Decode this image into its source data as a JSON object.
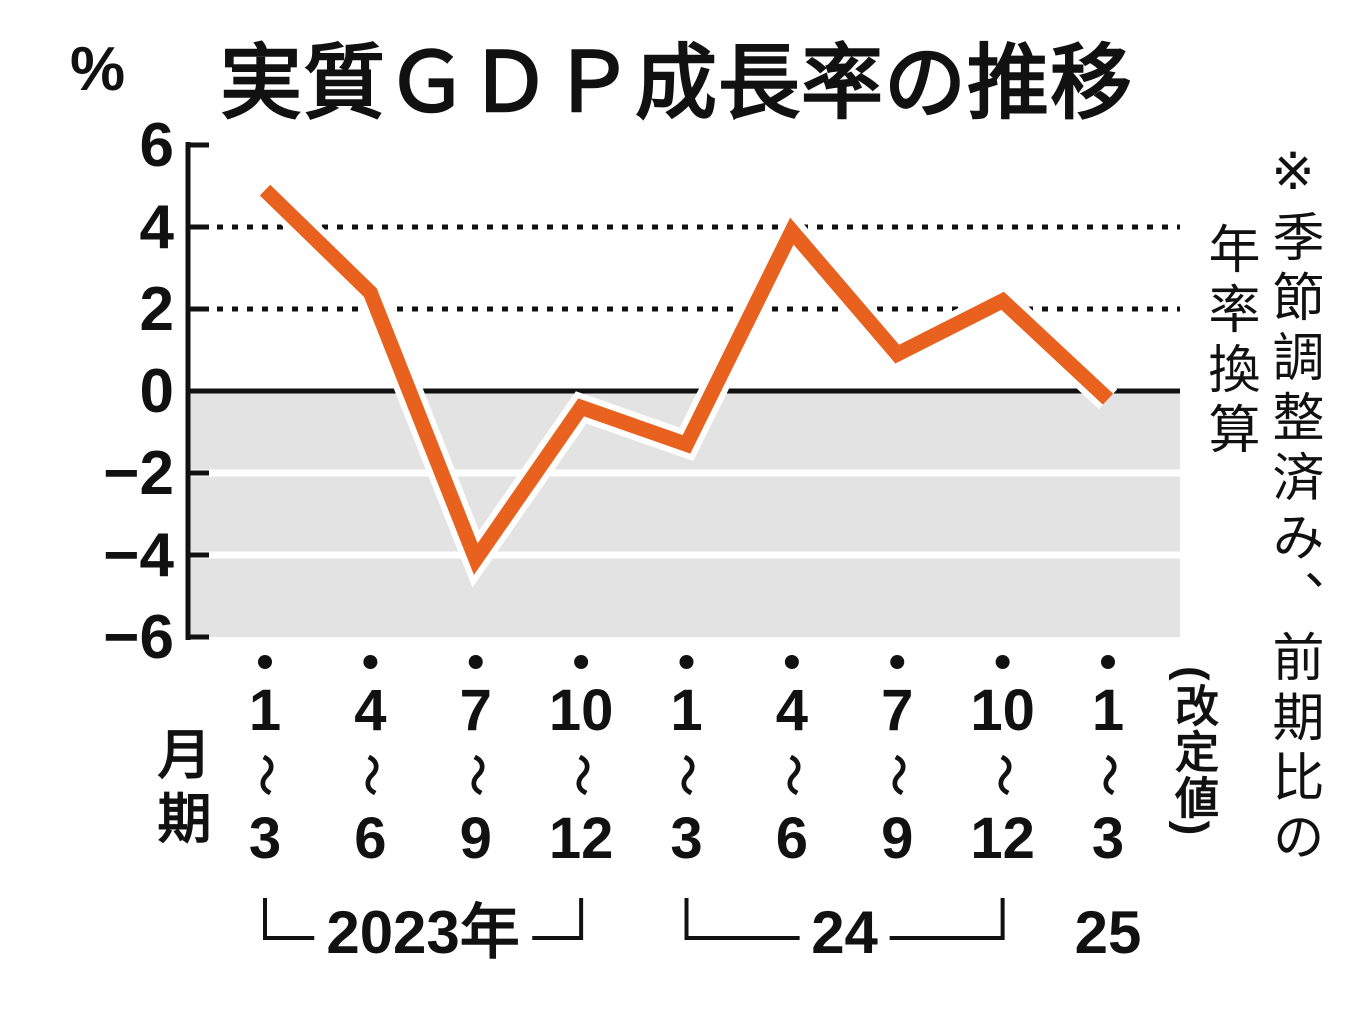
{
  "title": "実質ＧＤＰ成長率の推移",
  "y_axis": {
    "unit": "%",
    "ticks": [
      6,
      4,
      2,
      0,
      -2,
      -4,
      -6
    ],
    "tick_labels": [
      "6",
      "4",
      "2",
      "0",
      "−2",
      "−4",
      "−6"
    ]
  },
  "x_axis": {
    "period_label": "月期",
    "range_symbol": "〜",
    "revised_label": "(改定値)"
  },
  "note": {
    "line1": "※季節調整済み、前期比の",
    "line2": "年率換算"
  },
  "years": [
    {
      "label": "2023年",
      "from": 0,
      "to": 3,
      "bracket": true
    },
    {
      "label": "24",
      "from": 4,
      "to": 7,
      "bracket": true
    },
    {
      "label": "25",
      "from": 8,
      "to": 8,
      "bracket": false
    }
  ],
  "chart_data": {
    "type": "line",
    "title": "実質ＧＤＰ成長率の推移",
    "ylabel": "%",
    "ylim": [
      -6,
      6
    ],
    "yticks": [
      6,
      4,
      2,
      0,
      -2,
      -4,
      -6
    ],
    "categories": [
      {
        "from": "1",
        "to": "3"
      },
      {
        "from": "4",
        "to": "6"
      },
      {
        "from": "7",
        "to": "9"
      },
      {
        "from": "10",
        "to": "12"
      },
      {
        "from": "1",
        "to": "3"
      },
      {
        "from": "4",
        "to": "6"
      },
      {
        "from": "7",
        "to": "9"
      },
      {
        "from": "10",
        "to": "12"
      },
      {
        "from": "1",
        "to": "3"
      }
    ],
    "category_years": [
      "2023年",
      "2023年",
      "2023年",
      "2023年",
      "24",
      "24",
      "24",
      "24",
      "25"
    ],
    "values": [
      4.9,
      2.4,
      -4.1,
      -0.4,
      -1.3,
      3.9,
      0.9,
      2.2,
      -0.2
    ],
    "note": "※季節調整済み、前期比の年率換算",
    "last_point_label": "(改定値)",
    "line_color": "#e8611f",
    "line_casing_color": "#ffffff",
    "negative_band_color": "#e3e3e3",
    "gridlines": {
      "dotted_at": [
        4,
        2
      ],
      "zero_line": true,
      "white_lines_at": [
        -2,
        -4
      ]
    },
    "legend_position": "none",
    "grid": true
  }
}
